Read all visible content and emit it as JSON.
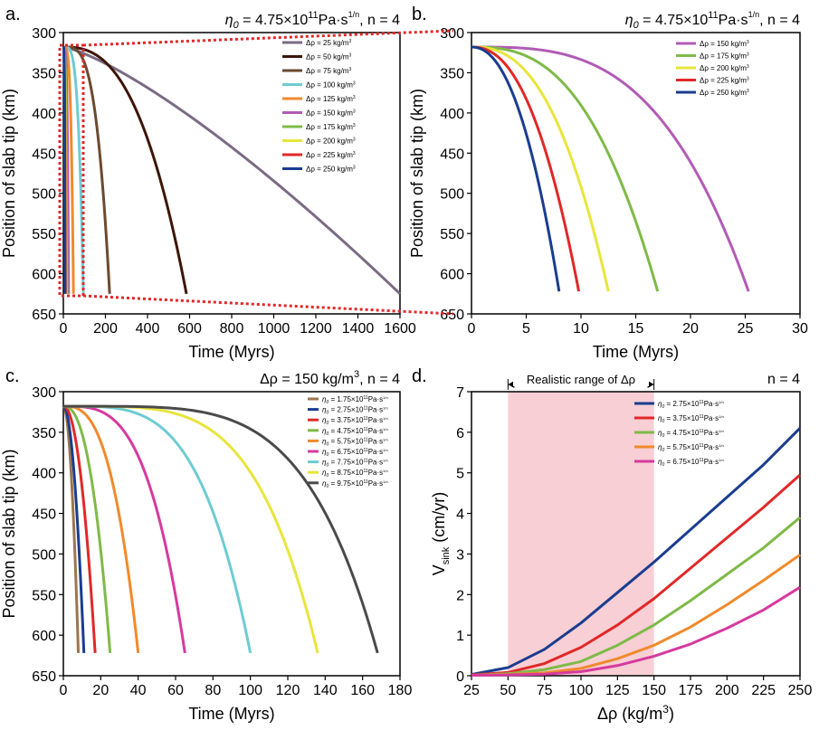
{
  "figure": {
    "panels": [
      {
        "id": "a",
        "label": "a.",
        "title_text": "η0 = 4.75×10^11 Pa·s^(1/n), n = 4",
        "title_parts": {
          "eta": "η",
          "sub": "0",
          "mid": " = 4.75×10",
          "exp": "11",
          "unit": "Pa·s",
          "frac_num": "1",
          "frac_den": "n",
          "tail": " n = 4"
        },
        "chart_data": {
          "type": "line",
          "title": "η0 = 4.75×10^11 Pa·s^(1/n), n = 4",
          "xlabel": "Time (Myrs)",
          "ylabel": "Position of slab tip (km)",
          "xlim": [
            0,
            1600
          ],
          "ylim": [
            300,
            650
          ],
          "y_inverted": true,
          "xticks": [
            0,
            200,
            400,
            600,
            800,
            1000,
            1200,
            1400,
            1600
          ],
          "yticks": [
            300,
            350,
            400,
            450,
            500,
            550,
            600,
            650
          ],
          "legend_position": "top-right",
          "series": [
            {
              "name": "Δρ = 25 kg/m3",
              "legend": "Δρ = 25 kg/m",
              "color": "#7b6b84",
              "end_time": 1600,
              "shape": 1.3
            },
            {
              "name": "Δρ = 50 kg/m3",
              "legend": "Δρ = 50 kg/m",
              "color": "#3d1608",
              "end_time": 585,
              "shape": 2.6
            },
            {
              "name": "Δρ = 75 kg/m3",
              "legend": "Δρ = 75 kg/m",
              "color": "#6b4a30",
              "end_time": 220,
              "shape": 3.5
            },
            {
              "name": "Δρ = 100 kg/m3",
              "legend": "Δρ = 100 kg/m",
              "color": "#6ecbd3",
              "end_time": 95,
              "shape": 4.0
            },
            {
              "name": "Δρ = 125 kg/m3",
              "legend": "Δρ = 125 kg/m",
              "color": "#f08a2c",
              "end_time": 48,
              "shape": 4.0
            },
            {
              "name": "Δρ = 150 kg/m3",
              "legend": "Δρ = 150 kg/m",
              "color": "#b25bb6",
              "end_time": 25,
              "shape": 4.0
            },
            {
              "name": "Δρ = 175 kg/m3",
              "legend": "Δρ = 175 kg/m",
              "color": "#7fba48",
              "end_time": 17,
              "shape": 4.0
            },
            {
              "name": "Δρ = 200 kg/m3",
              "legend": "Δρ = 200 kg/m",
              "color": "#e8e53c",
              "end_time": 12.5,
              "shape": 4.0
            },
            {
              "name": "Δρ = 225 kg/m3",
              "legend": "Δρ = 225 kg/m",
              "color": "#e02828",
              "end_time": 9.8,
              "shape": 4.0
            },
            {
              "name": "Δρ = 250 kg/m3",
              "legend": "Δρ = 250 kg/m",
              "color": "#1a3d8f",
              "end_time": 8,
              "shape": 4.0
            }
          ],
          "start_depth": 318,
          "end_depth": 625
        }
      },
      {
        "id": "b",
        "label": "b.",
        "title_text": "η0 = 4.75×10^11 Pa·s^(1/n), n = 4",
        "title_parts": {
          "eta": "η",
          "sub": "0",
          "mid": " = 4.75×10",
          "exp": "11",
          "unit": "Pa·s",
          "frac_num": "1",
          "frac_den": "n",
          "tail": " n = 4"
        },
        "chart_data": {
          "type": "line",
          "title": "η0 = 4.75×10^11 Pa·s^(1/n), n = 4",
          "xlabel": "Time (Myrs)",
          "ylabel": "Position of slab tip (km)",
          "xlim": [
            0,
            30
          ],
          "ylim": [
            300,
            650
          ],
          "y_inverted": true,
          "xticks": [
            0,
            5,
            10,
            15,
            20,
            25,
            30
          ],
          "yticks": [
            300,
            350,
            400,
            450,
            500,
            550,
            600,
            650
          ],
          "legend_position": "top-right",
          "series": [
            {
              "name": "Δρ = 150 kg/m3",
              "legend": "Δρ = 150 kg/m",
              "color": "#b25bb6",
              "end_time": 25.3,
              "shape": 3.2
            },
            {
              "name": "Δρ = 175 kg/m3",
              "legend": "Δρ = 175 kg/m",
              "color": "#7fba48",
              "end_time": 17,
              "shape": 2.7
            },
            {
              "name": "Δρ = 200 kg/m3",
              "legend": "Δρ = 200 kg/m",
              "color": "#e8e53c",
              "end_time": 12.5,
              "shape": 2.5
            },
            {
              "name": "Δρ = 225 kg/m3",
              "legend": "Δρ = 225 kg/m",
              "color": "#e02828",
              "end_time": 9.8,
              "shape": 2.3
            },
            {
              "name": "Δρ = 250 kg/m3",
              "legend": "Δρ = 250 kg/m",
              "color": "#1a3d8f",
              "end_time": 8,
              "shape": 2.2
            }
          ],
          "start_depth": 318,
          "end_depth": 622
        }
      },
      {
        "id": "c",
        "label": "c.",
        "title_text": "Δρ = 150 kg/m3, n = 4",
        "title_parts": {
          "main": "Δρ = 150 kg/m",
          "exp": "3",
          "tail": ", n = 4"
        },
        "chart_data": {
          "type": "line",
          "title": "Δρ = 150 kg/m3, n = 4",
          "xlabel": "Time (Myrs)",
          "ylabel": "Position of slab tip (km)",
          "xlim": [
            0,
            180
          ],
          "ylim": [
            300,
            650
          ],
          "y_inverted": true,
          "xticks": [
            0,
            20,
            40,
            60,
            80,
            100,
            120,
            140,
            160,
            180
          ],
          "yticks": [
            300,
            350,
            400,
            450,
            500,
            550,
            600,
            650
          ],
          "legend_position": "top-right",
          "series": [
            {
              "name": "η0 = 1.75×10^11 Pa·s^(1/n)",
              "legend": "η0 = 1.75×10",
              "color": "#9b7650",
              "end_time": 8,
              "shape": 2.0
            },
            {
              "name": "η0 = 2.75×10^11 Pa·s^(1/n)",
              "legend": "η0 = 2.75×10",
              "color": "#1a3d8f",
              "end_time": 11,
              "shape": 2.0
            },
            {
              "name": "η0 = 3.75×10^11 Pa·s^(1/n)",
              "legend": "η0 = 3.75×10",
              "color": "#e02828",
              "end_time": 17,
              "shape": 2.1
            },
            {
              "name": "η0 = 4.75×10^11 Pa·s^(1/n)",
              "legend": "η0 = 4.75×10",
              "color": "#7fba48",
              "end_time": 25,
              "shape": 2.4
            },
            {
              "name": "η0 = 5.75×10^11 Pa·s^(1/n)",
              "legend": "η0 = 5.75×10",
              "color": "#f08a2c",
              "end_time": 40,
              "shape": 2.8
            },
            {
              "name": "η0 = 6.75×10^11 Pa·s^(1/n)",
              "legend": "η0 = 6.75×10",
              "color": "#d63a9e",
              "end_time": 65,
              "shape": 3.3
            },
            {
              "name": "η0 = 7.75×10^11 Pa·s^(1/n)",
              "legend": "η0 = 7.75×10",
              "color": "#6ecbd3",
              "end_time": 100,
              "shape": 3.8
            },
            {
              "name": "η0 = 8.75×10^11 Pa·s^(1/n)",
              "legend": "η0 = 8.75×10",
              "color": "#e8e53c",
              "end_time": 136,
              "shape": 4.3
            },
            {
              "name": "η0 = 9.75×10^11 Pa·s^(1/n)",
              "legend": "η0 = 9.75×10",
              "color": "#4a4a4a",
              "end_time": 168,
              "shape": 4.6
            }
          ],
          "start_depth": 318,
          "end_depth": 622
        }
      },
      {
        "id": "d",
        "label": "d.",
        "title_text": "n = 4",
        "annotation": "Realistic range of Δρ",
        "chart_data": {
          "type": "line",
          "title": "n = 4",
          "xlabel": "Δρ (kg/m3)",
          "xlabel_main": "Δρ (kg/m",
          "xlabel_exp": "3",
          "xlabel_tail": ")",
          "ylabel": "V sink (cm/yr)",
          "ylabel_main": "V",
          "ylabel_sub": "sink",
          "ylabel_tail": " (cm/yr)",
          "xlim": [
            25,
            250
          ],
          "ylim": [
            0,
            7
          ],
          "xticks": [
            25,
            50,
            75,
            100,
            125,
            150,
            175,
            200,
            225,
            250
          ],
          "yticks": [
            0,
            1,
            2,
            3,
            4,
            5,
            6,
            7
          ],
          "shaded_range": [
            50,
            150
          ],
          "legend_position": "top-right",
          "x": [
            25,
            50,
            75,
            100,
            125,
            150,
            175,
            200,
            225,
            250
          ],
          "series": [
            {
              "name": "η0 = 2.75×10^11 Pa·s^(1/n)",
              "legend": "η0 = 2.75×10",
              "color": "#1a3d8f",
              "values": [
                0.03,
                0.2,
                0.65,
                1.3,
                2.05,
                2.8,
                3.6,
                4.4,
                5.2,
                6.1
              ]
            },
            {
              "name": "η0 = 3.75×10^11 Pa·s^(1/n)",
              "legend": "η0 = 3.75×10",
              "color": "#e02828",
              "values": [
                0.02,
                0.08,
                0.3,
                0.7,
                1.25,
                1.9,
                2.65,
                3.4,
                4.15,
                4.95
              ]
            },
            {
              "name": "η0 = 4.75×10^11 Pa·s^(1/n)",
              "legend": "η0 = 4.75×10",
              "color": "#7fba48",
              "values": [
                0.01,
                0.05,
                0.15,
                0.35,
                0.75,
                1.25,
                1.85,
                2.5,
                3.15,
                3.9
              ]
            },
            {
              "name": "η0 = 5.75×10^11 Pa·s^(1/n)",
              "legend": "η0 = 5.75×10",
              "color": "#f08a2c",
              "values": [
                0.01,
                0.03,
                0.07,
                0.18,
                0.42,
                0.75,
                1.2,
                1.75,
                2.35,
                2.98
              ]
            },
            {
              "name": "η0 = 6.75×10^11 Pa·s^(1/n)",
              "legend": "η0 = 6.75×10",
              "color": "#d63a9e",
              "values": [
                0.01,
                0.02,
                0.04,
                0.1,
                0.25,
                0.48,
                0.78,
                1.17,
                1.62,
                2.18
              ]
            }
          ]
        }
      }
    ]
  },
  "legend_suffix_exp": "3",
  "eta_legend_tail": {
    "exp": "11",
    "unit": "Pa·s",
    "frac": "1/n"
  }
}
